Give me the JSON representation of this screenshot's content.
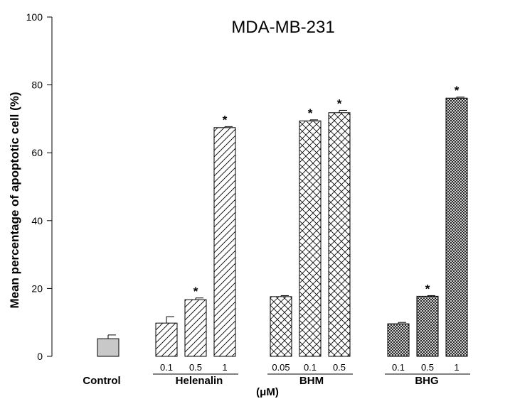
{
  "chart_data": {
    "type": "bar",
    "title": "MDA-MB-231",
    "ylabel": "Mean percentage of apoptotic cell (%)",
    "xlabel": "(μM)",
    "ylim": [
      0,
      100
    ],
    "yticks": [
      0,
      20,
      40,
      60,
      80,
      100
    ],
    "groups": [
      {
        "name": "Control",
        "pattern": "solid-gray",
        "bars": [
          {
            "dose": "",
            "value": 5.2,
            "error": 1.1,
            "significant": false
          }
        ]
      },
      {
        "name": "Helenalin",
        "pattern": "diagonal",
        "bars": [
          {
            "dose": "0.1",
            "value": 9.8,
            "error": 1.9,
            "significant": false
          },
          {
            "dose": "0.5",
            "value": 16.7,
            "error": 0.5,
            "significant": true
          },
          {
            "dose": "1",
            "value": 67.4,
            "error": 0.3,
            "significant": true
          }
        ]
      },
      {
        "name": "BHM",
        "pattern": "crosshatch",
        "bars": [
          {
            "dose": "0.05",
            "value": 17.6,
            "error": 0.3,
            "significant": false
          },
          {
            "dose": "0.1",
            "value": 69.4,
            "error": 0.3,
            "significant": true
          },
          {
            "dose": "0.5",
            "value": 71.8,
            "error": 0.7,
            "significant": true
          }
        ]
      },
      {
        "name": "BHG",
        "pattern": "dense-dots",
        "bars": [
          {
            "dose": "0.1",
            "value": 9.6,
            "error": 0.4,
            "significant": false
          },
          {
            "dose": "0.5",
            "value": 17.7,
            "error": 0.2,
            "significant": true
          },
          {
            "dose": "1",
            "value": 76.1,
            "error": 0.3,
            "significant": true
          }
        ]
      }
    ],
    "significance_marker": "*",
    "colors": {
      "control_fill": "#c8c8c8",
      "line": "#000000",
      "background": "#ffffff"
    }
  }
}
